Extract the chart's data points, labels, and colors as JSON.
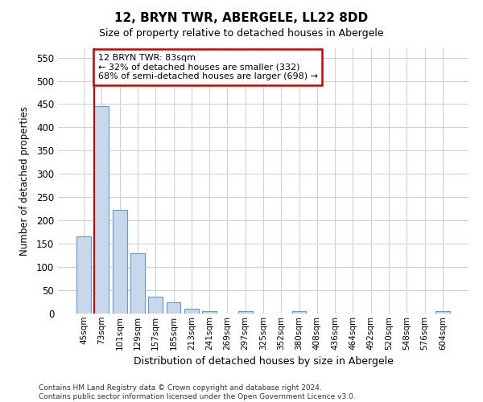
{
  "title": "12, BRYN TWR, ABERGELE, LL22 8DD",
  "subtitle": "Size of property relative to detached houses in Abergele",
  "xlabel": "Distribution of detached houses by size in Abergele",
  "ylabel": "Number of detached properties",
  "bar_color": "#c8d8ea",
  "bar_edgecolor": "#5b9bd5",
  "categories": [
    "45sqm",
    "73sqm",
    "101sqm",
    "129sqm",
    "157sqm",
    "185sqm",
    "213sqm",
    "241sqm",
    "269sqm",
    "297sqm",
    "325sqm",
    "352sqm",
    "380sqm",
    "408sqm",
    "436sqm",
    "464sqm",
    "492sqm",
    "520sqm",
    "548sqm",
    "576sqm",
    "604sqm"
  ],
  "values": [
    165,
    445,
    222,
    130,
    37,
    25,
    10,
    6,
    0,
    5,
    0,
    0,
    5,
    0,
    0,
    0,
    0,
    0,
    0,
    0,
    5
  ],
  "ylim": [
    0,
    570
  ],
  "yticks": [
    0,
    50,
    100,
    150,
    200,
    250,
    300,
    350,
    400,
    450,
    500,
    550
  ],
  "property_bin_index": 1,
  "property_label": "12 BRYN TWR: 83sqm",
  "annotation_line1": "← 32% of detached houses are smaller (332)",
  "annotation_line2": "68% of semi-detached houses are larger (698) →",
  "box_facecolor": "#ffffff",
  "box_edgecolor": "#cc0000",
  "vline_color": "#cc0000",
  "grid_color": "#c8d0dc",
  "footnote1": "Contains HM Land Registry data © Crown copyright and database right 2024.",
  "footnote2": "Contains public sector information licensed under the Open Government Licence v3.0."
}
